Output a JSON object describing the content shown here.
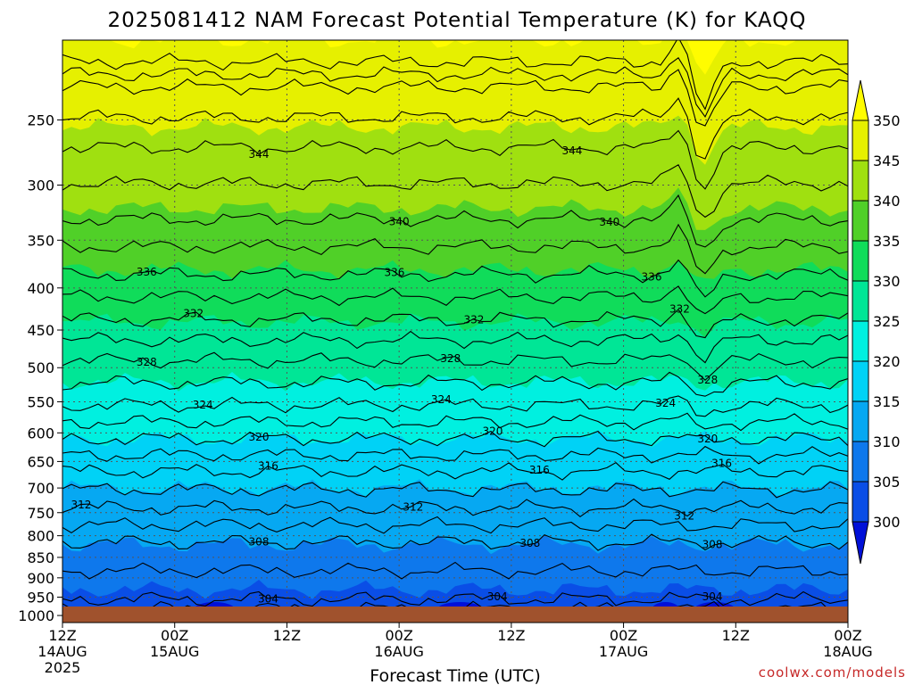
{
  "chart_data": {
    "type": "heatmap",
    "title": "2025081412 NAM Forecast Potential Temperature (K) for KAQQ",
    "xlabel": "Forecast Time (UTC)",
    "ylabel": "",
    "y_scale": "log-pressure",
    "y_reversed": true,
    "y_ticks": [
      250,
      300,
      350,
      400,
      450,
      500,
      550,
      600,
      650,
      700,
      750,
      800,
      850,
      900,
      950,
      1000
    ],
    "ylim": [
      200,
      1020
    ],
    "x_ticks": [
      {
        "h": 0,
        "hour": "12Z",
        "day": "14AUG",
        "year": "2025"
      },
      {
        "h": 12,
        "hour": "00Z",
        "day": "15AUG",
        "year": ""
      },
      {
        "h": 24,
        "hour": "12Z",
        "day": "",
        "year": ""
      },
      {
        "h": 36,
        "hour": "00Z",
        "day": "16AUG",
        "year": ""
      },
      {
        "h": 48,
        "hour": "12Z",
        "day": "",
        "year": ""
      },
      {
        "h": 60,
        "hour": "00Z",
        "day": "17AUG",
        "year": ""
      },
      {
        "h": 72,
        "hour": "12Z",
        "day": "",
        "year": ""
      },
      {
        "h": 84,
        "hour": "00Z",
        "day": "18AUG",
        "year": ""
      }
    ],
    "xlim": [
      0,
      84
    ],
    "grid": true,
    "colorbar": {
      "ticks": [
        300,
        305,
        310,
        315,
        320,
        325,
        330,
        335,
        340,
        345,
        350
      ],
      "colors": [
        "#0010d8",
        "#0a4ee6",
        "#0e78ec",
        "#06a8f2",
        "#00d2f6",
        "#00f0e0",
        "#00e696",
        "#10dc5a",
        "#50d028",
        "#a0e010",
        "#e6f000",
        "#fffc00"
      ]
    },
    "contours": [
      {
        "level": 304,
        "p": 955,
        "labels": [
          {
            "h": 46.5,
            "text": "304"
          },
          {
            "h": 69.5,
            "text": "304"
          }
        ]
      },
      {
        "level": 304,
        "p": 895,
        "labels": [
          {
            "h": 22,
            "text": "304"
          }
        ]
      },
      {
        "level": 308,
        "p": 815,
        "labels": [
          {
            "h": 21,
            "text": "308"
          },
          {
            "h": 50,
            "text": "308"
          },
          {
            "h": 69.5,
            "text": "308"
          }
        ]
      },
      {
        "level": 312,
        "p": 740,
        "labels": [
          {
            "h": 2,
            "text": "312"
          },
          {
            "h": 37.5,
            "text": "312"
          },
          {
            "h": 66.5,
            "text": "312"
          }
        ]
      },
      {
        "level": 316,
        "p": 668,
        "labels": [
          {
            "h": 22,
            "text": "316"
          },
          {
            "h": 51,
            "text": "316"
          },
          {
            "h": 70.5,
            "text": "316"
          }
        ]
      },
      {
        "level": 320,
        "p": 610,
        "labels": [
          {
            "h": 21,
            "text": "320"
          },
          {
            "h": 46,
            "text": "320"
          },
          {
            "h": 69,
            "text": "320"
          }
        ]
      },
      {
        "level": 324,
        "p": 555,
        "labels": [
          {
            "h": 15,
            "text": "324"
          },
          {
            "h": 40.5,
            "text": "324"
          },
          {
            "h": 64.5,
            "text": "324"
          }
        ]
      },
      {
        "level": 328,
        "p": 490,
        "labels": [
          {
            "h": 9,
            "text": "328"
          },
          {
            "h": 41.5,
            "text": "328"
          },
          {
            "h": 69,
            "text": "328"
          }
        ]
      },
      {
        "level": 332,
        "p": 437,
        "labels": [
          {
            "h": 14,
            "text": "332"
          },
          {
            "h": 44,
            "text": "332"
          },
          {
            "h": 66,
            "text": "332"
          }
        ]
      },
      {
        "level": 336,
        "p": 385,
        "labels": [
          {
            "h": 9,
            "text": "336"
          },
          {
            "h": 35.5,
            "text": "336"
          },
          {
            "h": 63,
            "text": "336"
          }
        ]
      },
      {
        "level": 340,
        "p": 330,
        "labels": [
          {
            "h": 36,
            "text": "340"
          },
          {
            "h": 58.5,
            "text": "340"
          }
        ]
      },
      {
        "level": 344,
        "p": 270,
        "labels": [
          {
            "h": 21,
            "text": "344"
          },
          {
            "h": 54.5,
            "text": "344"
          }
        ]
      }
    ]
  },
  "credit": "coolwx.com/models"
}
